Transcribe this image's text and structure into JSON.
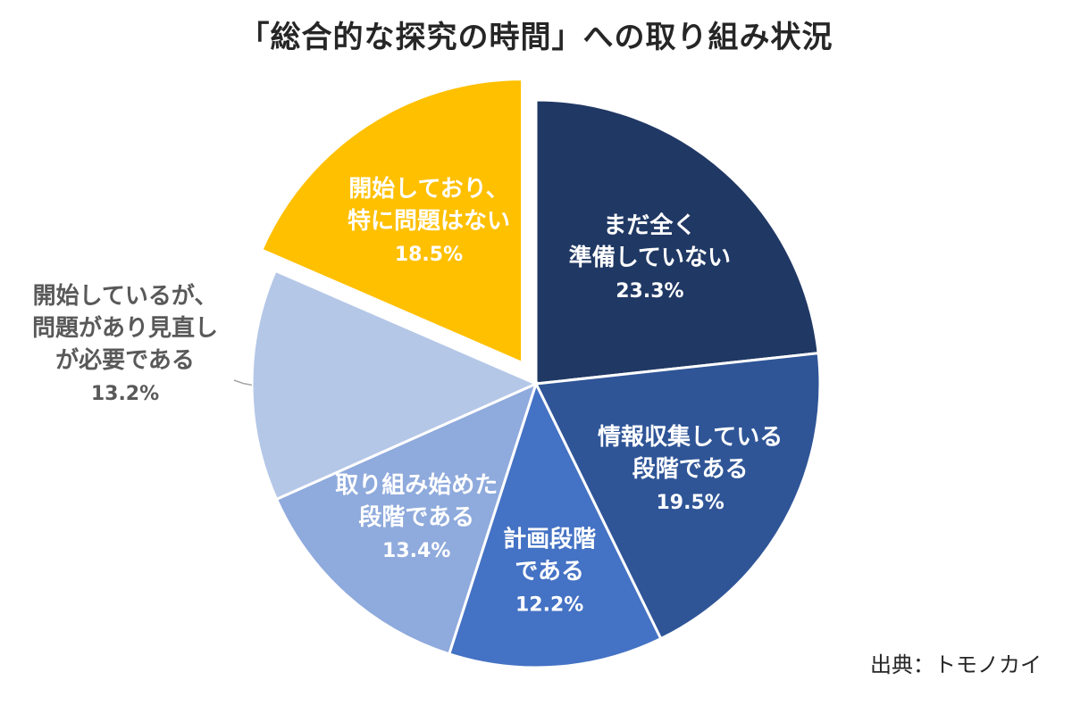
{
  "chart_data": {
    "type": "pie",
    "title": "「総合的な探究の時間」への取り組み状況",
    "categories": [
      [
        "まだ全く",
        "準備していない"
      ],
      [
        "情報収集している",
        "段階である"
      ],
      [
        "計画段階",
        "である"
      ],
      [
        "取り組み始めた",
        "段階である"
      ],
      [
        "開始しているが、",
        "問題があり見直し",
        "が必要である"
      ],
      [
        "開始しており、",
        "特に問題はない"
      ]
    ],
    "values": [
      23.3,
      19.5,
      12.2,
      13.4,
      13.2,
      18.5
    ],
    "value_labels": [
      "23.3%",
      "19.5%",
      "12.2%",
      "13.4%",
      "13.2%",
      "18.5%"
    ],
    "colors": [
      "#203864",
      "#2f5597",
      "#4472c4",
      "#8faadc",
      "#b4c7e7",
      "#ffc000"
    ],
    "label_colors": [
      "#ffffff",
      "#ffffff",
      "#ffffff",
      "#ffffff",
      "#595959",
      "#ffffff"
    ],
    "exploded_slice": 5,
    "source": "出典：トモノカイ"
  }
}
